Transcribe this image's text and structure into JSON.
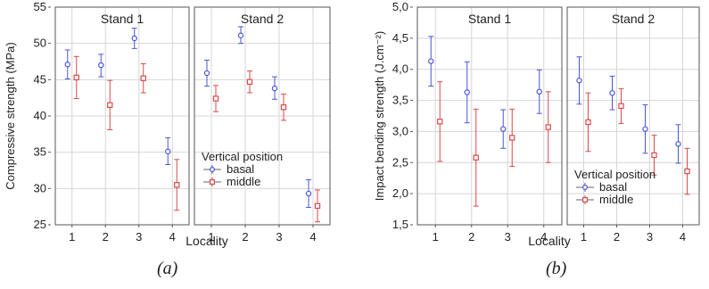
{
  "colors": {
    "basal": "#4a56d8",
    "middle": "#d94a4a",
    "frame": "#555555",
    "grid": "#d6d6d6"
  },
  "chart_data": [
    {
      "type": "scatter",
      "caption": "(a)",
      "ylabel": "Compressive strength (MPa)",
      "xlabel": "Locality",
      "ylim": [
        25,
        55
      ],
      "yticks": [
        "25",
        "30",
        "35",
        "40",
        "45",
        "50",
        "55"
      ],
      "categories": [
        "1",
        "2",
        "3",
        "4"
      ],
      "grid": true,
      "legend": {
        "title": "Vertical position",
        "placement": "inside lower-left of Stand 2",
        "entries": [
          "basal",
          "middle"
        ]
      },
      "panels": [
        {
          "title": "Stand 1",
          "series": [
            {
              "name": "basal",
              "mean": [
                47.1,
                47.0,
                50.7,
                35.1
              ],
              "low": [
                45.1,
                45.4,
                49.3,
                33.3
              ],
              "high": [
                49.1,
                48.5,
                52.1,
                37.0
              ]
            },
            {
              "name": "middle",
              "mean": [
                45.3,
                41.5,
                45.2,
                30.5
              ],
              "low": [
                42.4,
                38.1,
                43.2,
                27.0
              ],
              "high": [
                48.2,
                44.9,
                47.2,
                34.0
              ]
            }
          ]
        },
        {
          "title": "Stand 2",
          "series": [
            {
              "name": "basal",
              "mean": [
                45.9,
                51.1,
                43.8,
                29.3
              ],
              "low": [
                44.1,
                50.0,
                42.3,
                27.4
              ],
              "high": [
                47.7,
                52.3,
                45.4,
                31.2
              ]
            },
            {
              "name": "middle",
              "mean": [
                42.4,
                44.7,
                41.2,
                27.6
              ],
              "low": [
                40.6,
                43.2,
                39.4,
                25.4
              ],
              "high": [
                44.2,
                46.2,
                43.0,
                29.8
              ]
            }
          ]
        }
      ]
    },
    {
      "type": "scatter",
      "caption": "(b)",
      "ylabel": "Impact bending strength (J.cm⁻²)",
      "xlabel": "Locality",
      "ylim": [
        1.5,
        5.0
      ],
      "yticks": [
        "1,5",
        "2,0",
        "2,5",
        "3,0",
        "3,5",
        "4,0",
        "4,5",
        "5,0"
      ],
      "categories": [
        "1",
        "2",
        "3",
        "4"
      ],
      "grid": true,
      "legend": {
        "title": "Vertical position",
        "placement": "inside lower-left of Stand 2",
        "entries": [
          "basal",
          "middle"
        ]
      },
      "panels": [
        {
          "title": "Stand 1",
          "series": [
            {
              "name": "basal",
              "mean": [
                4.13,
                3.63,
                3.04,
                3.64
              ],
              "low": [
                3.73,
                3.14,
                2.73,
                3.29
              ],
              "high": [
                4.53,
                4.12,
                3.35,
                3.99
              ]
            },
            {
              "name": "middle",
              "mean": [
                3.16,
                2.58,
                2.9,
                3.07
              ],
              "low": [
                2.52,
                1.8,
                2.44,
                2.5
              ],
              "high": [
                3.8,
                3.36,
                3.36,
                3.64
              ]
            }
          ]
        },
        {
          "title": "Stand 2",
          "series": [
            {
              "name": "basal",
              "mean": [
                3.82,
                3.62,
                3.04,
                2.8
              ],
              "low": [
                3.44,
                3.35,
                2.65,
                2.49
              ],
              "high": [
                4.2,
                3.89,
                3.43,
                3.11
              ]
            },
            {
              "name": "middle",
              "mean": [
                3.15,
                3.41,
                2.62,
                2.36
              ],
              "low": [
                2.68,
                3.13,
                2.3,
                1.99
              ],
              "high": [
                3.62,
                3.69,
                2.94,
                2.73
              ]
            }
          ]
        }
      ]
    }
  ]
}
